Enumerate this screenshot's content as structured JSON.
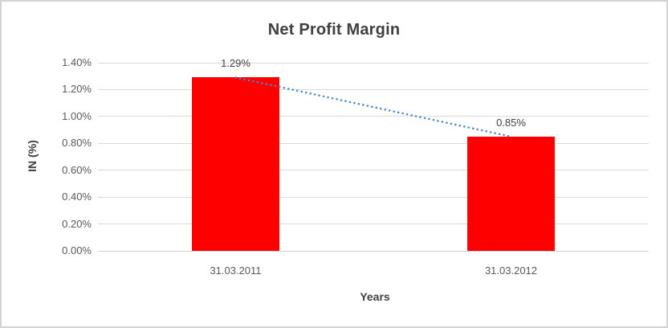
{
  "chart_data": {
    "type": "bar",
    "title": "Net Profit Margin",
    "categories": [
      "31.03.2011",
      "31.03.2012"
    ],
    "series": [
      {
        "name": "Net Profit Margin",
        "values": [
          1.29,
          0.85
        ]
      }
    ],
    "data_labels": [
      "1.29%",
      "0.85%"
    ],
    "xlabel": "Years",
    "ylabel": "IN (%)",
    "ylim": [
      0,
      1.4
    ],
    "ytick_step": 0.2,
    "ytick_labels": [
      "0.00%",
      "0.20%",
      "0.40%",
      "0.60%",
      "0.80%",
      "1.00%",
      "1.20%",
      "1.40%"
    ],
    "grid": true,
    "legend": "none",
    "trendline": {
      "style": "dotted",
      "color": "#4a86c8"
    },
    "bar_color": "#ff0000"
  },
  "colors": {
    "background": "#ffffff",
    "border": "#d3d3d3",
    "gridline": "#d9d9d9",
    "axis_line": "#cfcfcf",
    "bar": "#ff0000",
    "trendline": "#4a86c8",
    "title_text": "#404040",
    "tick_text": "#595959",
    "data_label_text": "#404040"
  }
}
